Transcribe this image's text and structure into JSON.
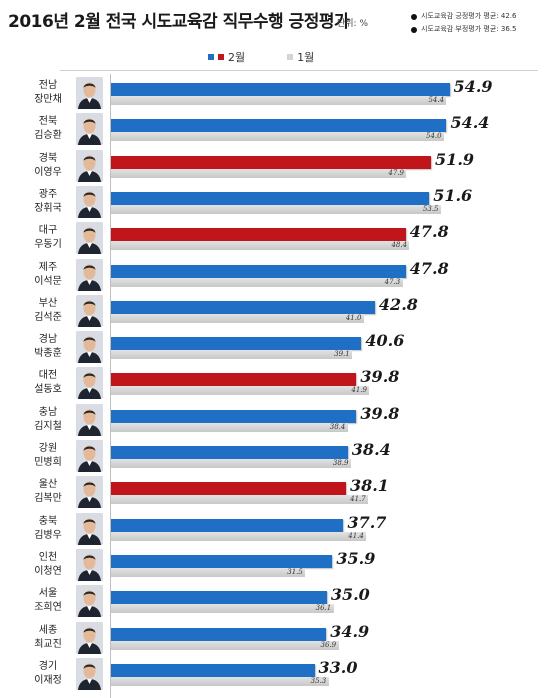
{
  "header": {
    "title": "2016년 2월 전국 시도교육감 직무수행 긍정평가",
    "unit": "단위: %",
    "avg_positive": "시도교육감 긍정평가 평균: 42.6",
    "avg_negative": "시도교육감 부정평가 평균: 36.5"
  },
  "colors": {
    "current_default": "#1f6fc5",
    "current_highlight": "#c0161b",
    "previous": "#d4d4d4"
  },
  "chart_data": {
    "type": "bar",
    "orientation": "horizontal",
    "title": "2016년 2월 전국 시도교육감 직무수행 긍정평가",
    "unit": "%",
    "legend": [
      "2월",
      "1월"
    ],
    "categories": [
      {
        "region": "전남",
        "name": "장만채"
      },
      {
        "region": "전북",
        "name": "김승환"
      },
      {
        "region": "경북",
        "name": "이영우"
      },
      {
        "region": "광주",
        "name": "장휘국"
      },
      {
        "region": "대구",
        "name": "우동기"
      },
      {
        "region": "제주",
        "name": "이석문"
      },
      {
        "region": "부산",
        "name": "김석준"
      },
      {
        "region": "경남",
        "name": "박종훈"
      },
      {
        "region": "대전",
        "name": "설동호"
      },
      {
        "region": "충남",
        "name": "김지철"
      },
      {
        "region": "강원",
        "name": "민병희"
      },
      {
        "region": "울산",
        "name": "김복만"
      },
      {
        "region": "충북",
        "name": "김병우"
      },
      {
        "region": "인천",
        "name": "이청연"
      },
      {
        "region": "서울",
        "name": "조희연"
      },
      {
        "region": "세종",
        "name": "최교진"
      },
      {
        "region": "경기",
        "name": "이재정"
      }
    ],
    "series": [
      {
        "name": "2월",
        "values": [
          54.9,
          54.4,
          51.9,
          51.6,
          47.8,
          47.8,
          42.8,
          40.6,
          39.8,
          39.8,
          38.4,
          38.1,
          37.7,
          35.9,
          35.0,
          34.9,
          33.0
        ],
        "highlight": [
          false,
          false,
          true,
          false,
          true,
          false,
          false,
          false,
          true,
          false,
          false,
          true,
          false,
          false,
          false,
          false,
          false
        ]
      },
      {
        "name": "1월",
        "values": [
          54.4,
          54.0,
          47.9,
          53.5,
          48.4,
          47.3,
          41.0,
          39.1,
          41.9,
          38.4,
          38.9,
          41.7,
          41.4,
          31.5,
          36.1,
          36.9,
          35.3
        ]
      }
    ],
    "xlim": [
      0,
      60
    ]
  }
}
